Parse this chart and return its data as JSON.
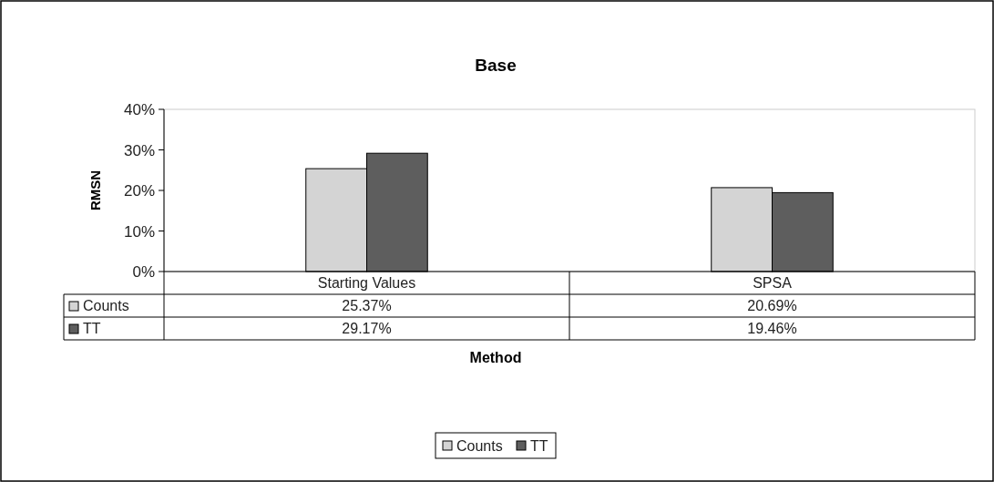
{
  "chart_data": {
    "type": "bar",
    "title": "Base",
    "xlabel": "Method",
    "ylabel": "RMSN",
    "categories": [
      "Starting Values",
      "SPSA"
    ],
    "series": [
      {
        "name": "Counts",
        "color": "#d4d4d4",
        "values": [
          25.37,
          20.69
        ],
        "value_labels": [
          "25.37%",
          "20.69%"
        ]
      },
      {
        "name": "TT",
        "color": "#5e5e5e",
        "values": [
          29.17,
          19.46
        ],
        "value_labels": [
          "29.17%",
          "19.46%"
        ]
      }
    ],
    "ylim": [
      0,
      40
    ],
    "yticks": [
      {
        "value": 0,
        "label": "0%"
      },
      {
        "value": 10,
        "label": "10%"
      },
      {
        "value": 20,
        "label": "20%"
      },
      {
        "value": 30,
        "label": "30%"
      },
      {
        "value": 40,
        "label": "40%"
      }
    ],
    "legend": "bottom"
  }
}
